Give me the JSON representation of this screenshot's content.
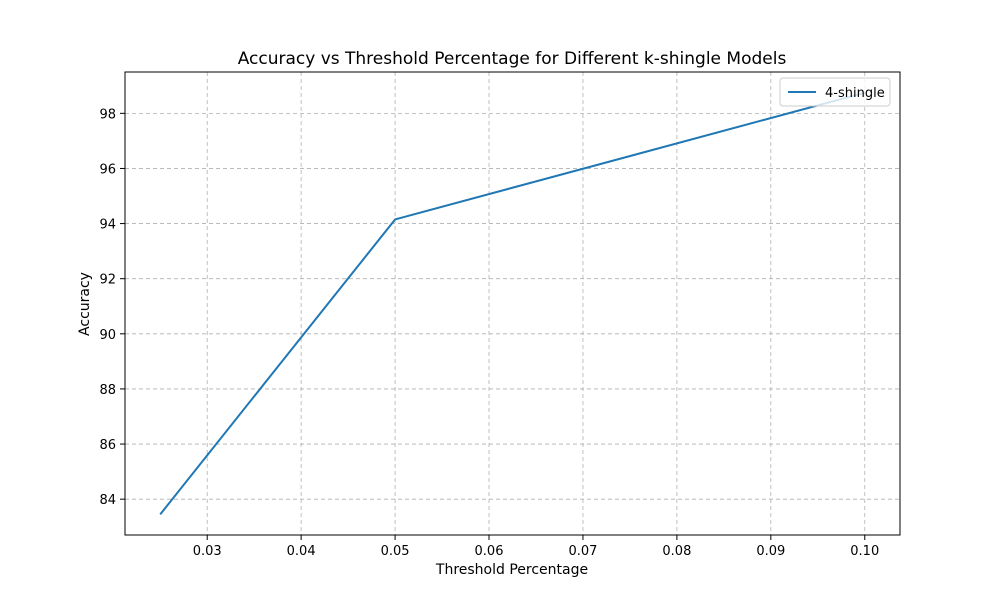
{
  "chart_data": {
    "type": "line",
    "title": "Accuracy vs Threshold Percentage for Different k-shingle Models",
    "xlabel": "Threshold Percentage",
    "ylabel": "Accuracy",
    "x": [
      0.025,
      0.05,
      0.1
    ],
    "series": [
      {
        "name": "4-shingle",
        "values": [
          83.45,
          94.15,
          98.75
        ],
        "color": "#1f77b4"
      }
    ],
    "xlim": [
      0.02125,
      0.10375
    ],
    "ylim": [
      82.7,
      99.5
    ],
    "x_ticks": [
      0.03,
      0.04,
      0.05,
      0.06,
      0.07,
      0.08,
      0.09,
      0.1
    ],
    "x_tick_labels": [
      "0.03",
      "0.04",
      "0.05",
      "0.06",
      "0.07",
      "0.08",
      "0.09",
      "0.10"
    ],
    "y_ticks": [
      84,
      86,
      88,
      90,
      92,
      94,
      96,
      98
    ],
    "y_tick_labels": [
      "84",
      "86",
      "88",
      "90",
      "92",
      "94",
      "96",
      "98"
    ],
    "grid": true,
    "legend_position": "upper right"
  }
}
